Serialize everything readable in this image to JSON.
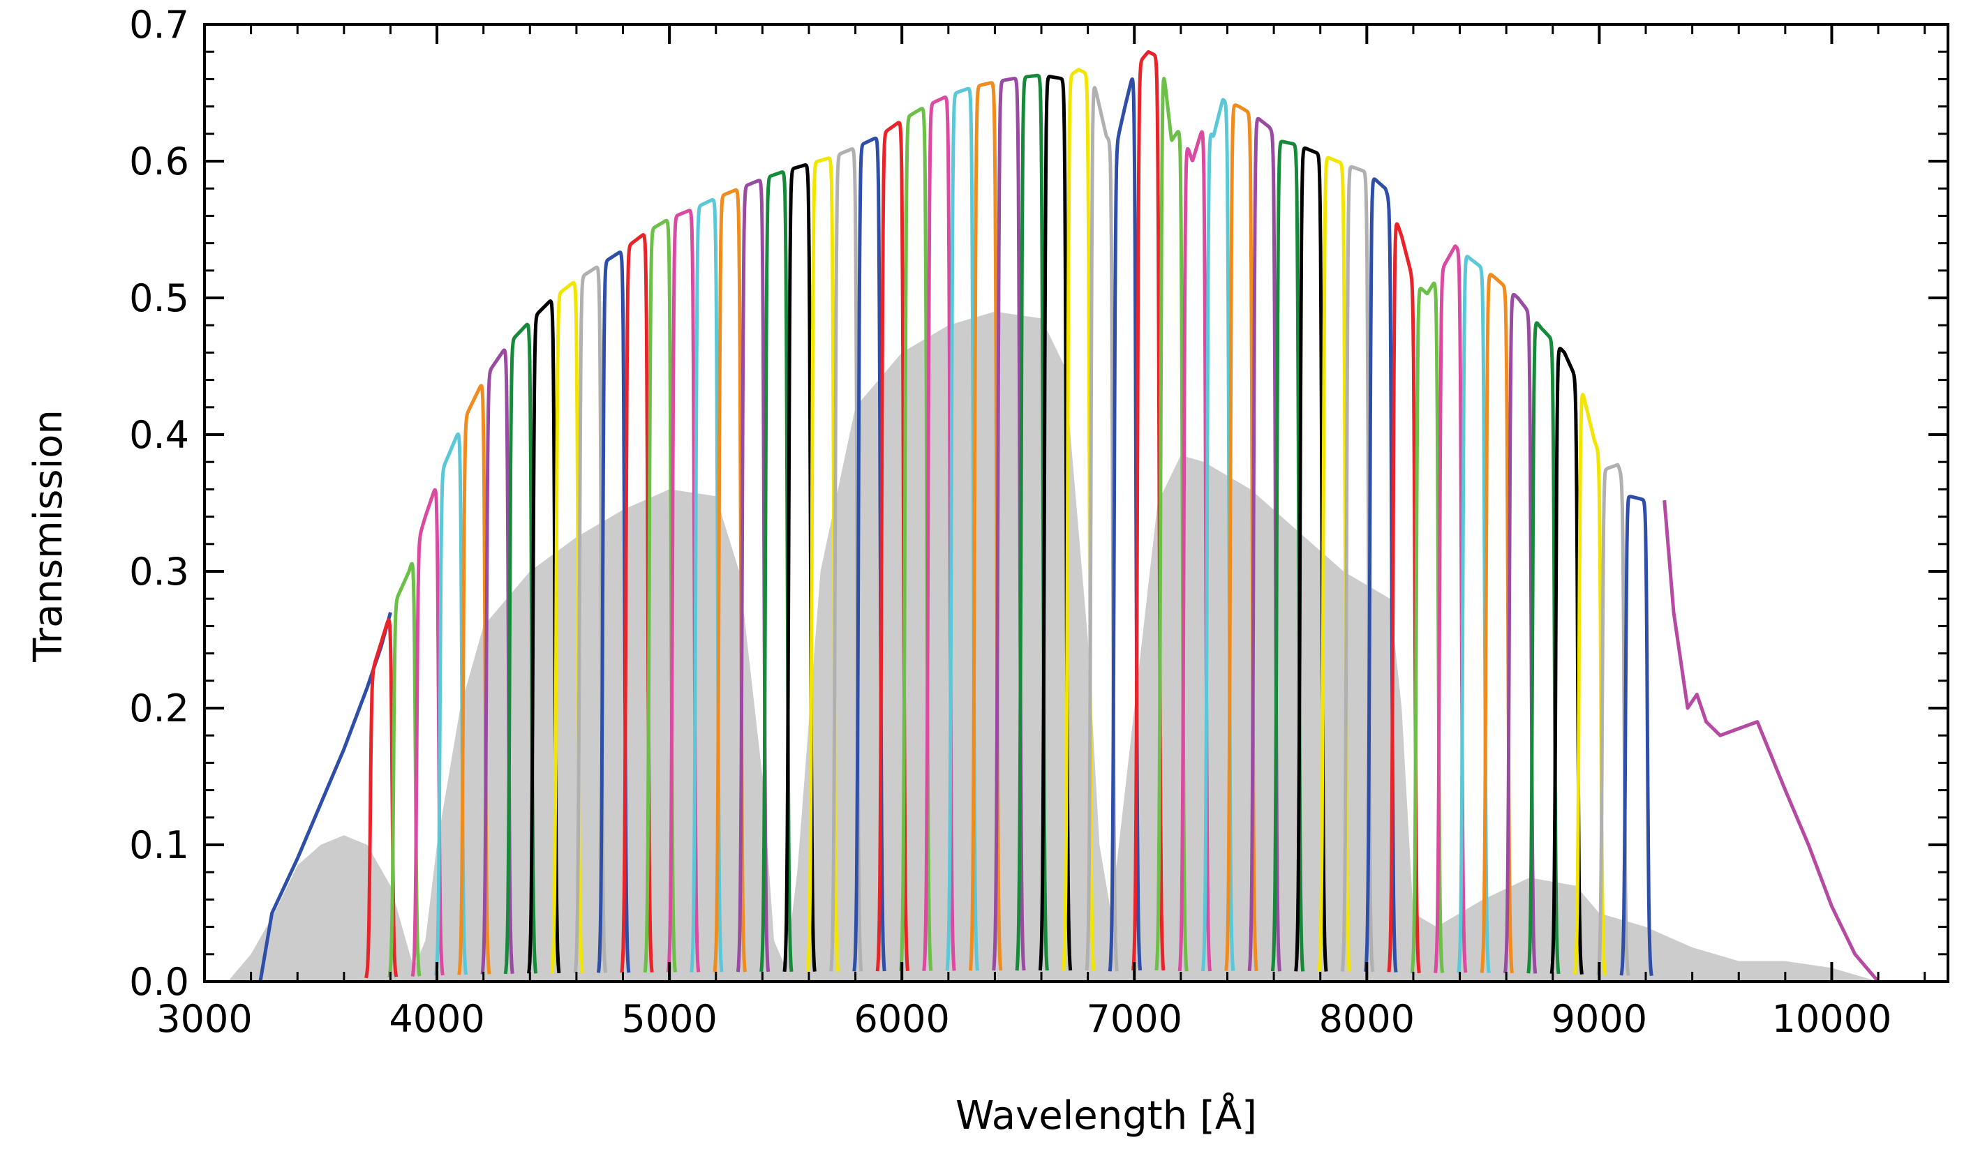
{
  "chart_data": {
    "type": "line",
    "title": "",
    "xlabel": "Wavelength [Å]",
    "ylabel": "Transmission",
    "xlim": [
      3000,
      10500
    ],
    "ylim": [
      0,
      0.7
    ],
    "x_ticks": [
      3000,
      4000,
      5000,
      6000,
      7000,
      8000,
      9000,
      10000
    ],
    "x_tick_labels": [
      "3000",
      "4000",
      "5000",
      "6000",
      "7000",
      "8000",
      "9000",
      "10000"
    ],
    "y_ticks": [
      0.0,
      0.1,
      0.2,
      0.3,
      0.4,
      0.5,
      0.6,
      0.7
    ],
    "y_tick_labels": [
      "0.0",
      "0.1",
      "0.2",
      "0.3",
      "0.4",
      "0.5",
      "0.6",
      "0.7"
    ],
    "grid": false,
    "legend": "none",
    "filter_colors": [
      "#e8232a",
      "#6cbf47",
      "#d94aa0",
      "#5bc8d8",
      "#f08c1e",
      "#994ba1",
      "#168a3a",
      "#000000",
      "#f2e600",
      "#b0b0b0",
      "#2e4ea8"
    ],
    "broad_filter_color": "#2e4ea8",
    "reference_fill_color": "#cccccc",
    "envelope_points": [
      [
        3290,
        0.05
      ],
      [
        3400,
        0.09
      ],
      [
        3500,
        0.13
      ],
      [
        3600,
        0.17
      ],
      [
        3700,
        0.215
      ],
      [
        3800,
        0.27
      ],
      [
        3880,
        0.3
      ],
      [
        3950,
        0.34
      ],
      [
        4000,
        0.365
      ],
      [
        4100,
        0.405
      ],
      [
        4200,
        0.44
      ],
      [
        4300,
        0.465
      ],
      [
        4400,
        0.483
      ],
      [
        4500,
        0.5
      ],
      [
        4600,
        0.513
      ],
      [
        4700,
        0.524
      ],
      [
        4800,
        0.535
      ],
      [
        4900,
        0.548
      ],
      [
        5000,
        0.558
      ],
      [
        5100,
        0.565
      ],
      [
        5200,
        0.573
      ],
      [
        5300,
        0.58
      ],
      [
        5400,
        0.587
      ],
      [
        5500,
        0.593
      ],
      [
        5600,
        0.598
      ],
      [
        5700,
        0.603
      ],
      [
        5800,
        0.61
      ],
      [
        5900,
        0.618
      ],
      [
        6000,
        0.63
      ],
      [
        6100,
        0.64
      ],
      [
        6200,
        0.648
      ],
      [
        6300,
        0.654
      ],
      [
        6400,
        0.658
      ],
      [
        6500,
        0.661
      ],
      [
        6600,
        0.663
      ],
      [
        6700,
        0.66
      ],
      [
        6760,
        0.667
      ],
      [
        6820,
        0.662
      ],
      [
        6880,
        0.618
      ],
      [
        6920,
        0.61
      ],
      [
        6960,
        0.64
      ],
      [
        7000,
        0.668
      ],
      [
        7060,
        0.68
      ],
      [
        7120,
        0.675
      ],
      [
        7160,
        0.615
      ],
      [
        7200,
        0.625
      ],
      [
        7250,
        0.6
      ],
      [
        7300,
        0.628
      ],
      [
        7340,
        0.618
      ],
      [
        7380,
        0.645
      ],
      [
        7450,
        0.64
      ],
      [
        7520,
        0.633
      ],
      [
        7580,
        0.625
      ],
      [
        7620,
        0.615
      ],
      [
        7700,
        0.612
      ],
      [
        7800,
        0.605
      ],
      [
        7900,
        0.598
      ],
      [
        8000,
        0.592
      ],
      [
        8080,
        0.58
      ],
      [
        8150,
        0.545
      ],
      [
        8200,
        0.512
      ],
      [
        8260,
        0.503
      ],
      [
        8320,
        0.52
      ],
      [
        8380,
        0.538
      ],
      [
        8450,
        0.528
      ],
      [
        8550,
        0.515
      ],
      [
        8650,
        0.5
      ],
      [
        8750,
        0.478
      ],
      [
        8850,
        0.46
      ],
      [
        8930,
        0.43
      ],
      [
        8980,
        0.395
      ],
      [
        9030,
        0.375
      ],
      [
        9080,
        0.378
      ],
      [
        9130,
        0.355
      ],
      [
        9200,
        0.352
      ],
      [
        9260,
        0.34
      ],
      [
        9320,
        0.27
      ],
      [
        9380,
        0.2
      ],
      [
        9420,
        0.21
      ],
      [
        9460,
        0.19
      ],
      [
        9520,
        0.18
      ],
      [
        9600,
        0.185
      ],
      [
        9680,
        0.19
      ],
      [
        9740,
        0.165
      ],
      [
        9800,
        0.14
      ],
      [
        9900,
        0.1
      ],
      [
        10000,
        0.055
      ],
      [
        10100,
        0.02
      ],
      [
        10200,
        0.0
      ]
    ],
    "broad_filter_points": [
      [
        3240,
        0.0
      ],
      [
        3290,
        0.05
      ],
      [
        3400,
        0.09
      ],
      [
        3500,
        0.13
      ],
      [
        3600,
        0.17
      ],
      [
        3700,
        0.215
      ],
      [
        3760,
        0.245
      ],
      [
        3800,
        0.27
      ]
    ],
    "broad_filter_points_2": [
      [
        9280,
        0.352
      ],
      [
        9320,
        0.27
      ],
      [
        9380,
        0.2
      ],
      [
        9420,
        0.21
      ],
      [
        9460,
        0.19
      ],
      [
        9520,
        0.18
      ],
      [
        9600,
        0.185
      ],
      [
        9680,
        0.19
      ],
      [
        9740,
        0.165
      ],
      [
        9800,
        0.14
      ],
      [
        9900,
        0.1
      ],
      [
        10000,
        0.055
      ],
      [
        10100,
        0.02
      ],
      [
        10200,
        0.0
      ]
    ],
    "narrow_filters": {
      "first_center": 3760,
      "last_center": 9180,
      "spacing": 100,
      "fwhm": 95
    },
    "reference_fill_points": [
      [
        3100,
        0.0
      ],
      [
        3200,
        0.02
      ],
      [
        3300,
        0.05
      ],
      [
        3400,
        0.085
      ],
      [
        3500,
        0.1
      ],
      [
        3600,
        0.107
      ],
      [
        3700,
        0.1
      ],
      [
        3800,
        0.07
      ],
      [
        3850,
        0.04
      ],
      [
        3900,
        0.01
      ],
      [
        3950,
        0.03
      ],
      [
        4000,
        0.1
      ],
      [
        4100,
        0.2
      ],
      [
        4200,
        0.26
      ],
      [
        4400,
        0.3
      ],
      [
        4600,
        0.325
      ],
      [
        4800,
        0.345
      ],
      [
        5000,
        0.36
      ],
      [
        5200,
        0.355
      ],
      [
        5300,
        0.3
      ],
      [
        5400,
        0.15
      ],
      [
        5450,
        0.03
      ],
      [
        5500,
        0.01
      ],
      [
        5550,
        0.08
      ],
      [
        5650,
        0.3
      ],
      [
        5800,
        0.42
      ],
      [
        6000,
        0.46
      ],
      [
        6200,
        0.48
      ],
      [
        6400,
        0.49
      ],
      [
        6600,
        0.485
      ],
      [
        6700,
        0.45
      ],
      [
        6800,
        0.25
      ],
      [
        6850,
        0.1
      ],
      [
        6900,
        0.05
      ],
      [
        7000,
        0.2
      ],
      [
        7100,
        0.35
      ],
      [
        7200,
        0.385
      ],
      [
        7300,
        0.38
      ],
      [
        7500,
        0.36
      ],
      [
        7700,
        0.33
      ],
      [
        7900,
        0.3
      ],
      [
        8100,
        0.28
      ],
      [
        8150,
        0.2
      ],
      [
        8200,
        0.05
      ],
      [
        8300,
        0.04
      ],
      [
        8500,
        0.06
      ],
      [
        8700,
        0.076
      ],
      [
        8900,
        0.07
      ],
      [
        9000,
        0.05
      ],
      [
        9200,
        0.04
      ],
      [
        9400,
        0.025
      ],
      [
        9600,
        0.015
      ],
      [
        9800,
        0.015
      ],
      [
        10000,
        0.01
      ],
      [
        10200,
        0.0
      ]
    ]
  }
}
